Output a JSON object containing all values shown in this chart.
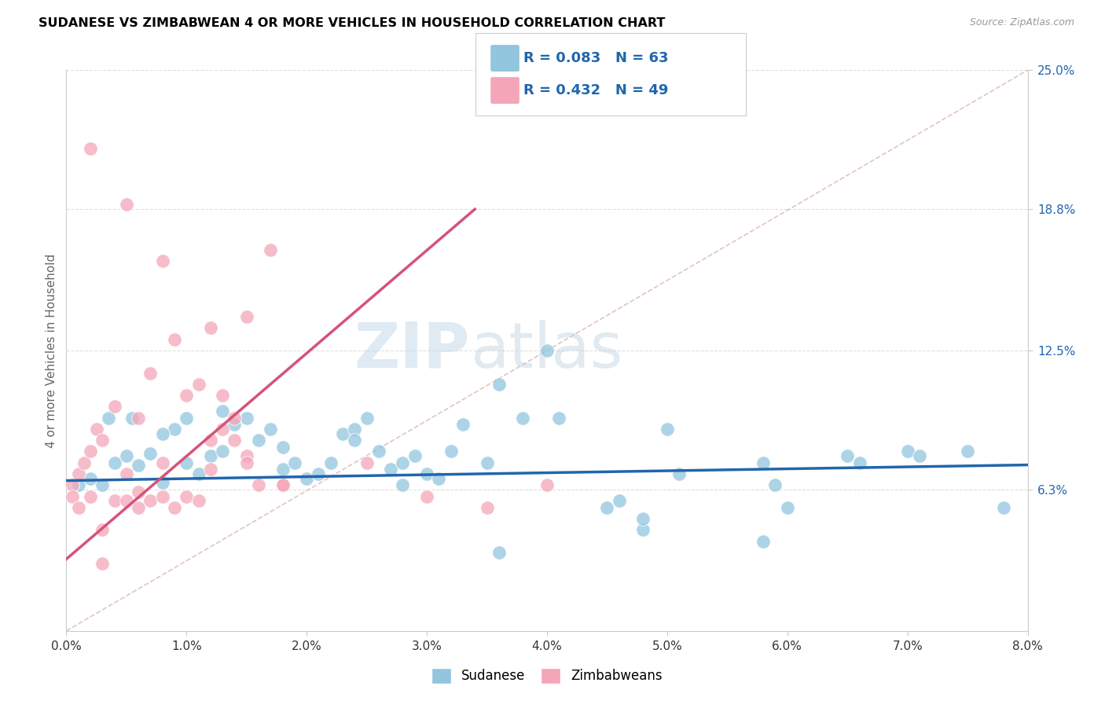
{
  "title": "SUDANESE VS ZIMBABWEAN 4 OR MORE VEHICLES IN HOUSEHOLD CORRELATION CHART",
  "source": "Source: ZipAtlas.com",
  "ylabel": "4 or more Vehicles in Household",
  "watermark_zip": "ZIP",
  "watermark_atlas": "atlas",
  "legend_r_blue": "R = 0.083",
  "legend_n_blue": "N = 63",
  "legend_r_pink": "R = 0.432",
  "legend_n_pink": "N = 49",
  "legend_label_blue": "Sudanese",
  "legend_label_pink": "Zimbabweans",
  "blue_color": "#92c5de",
  "pink_color": "#f4a6b8",
  "blue_line_color": "#2166ac",
  "pink_line_color": "#d6527a",
  "diag_color": "#d4aab0",
  "xlim": [
    0.0,
    0.08
  ],
  "ylim": [
    0.0,
    0.25
  ],
  "x_tick_vals": [
    0.0,
    0.01,
    0.02,
    0.03,
    0.04,
    0.05,
    0.06,
    0.07,
    0.08
  ],
  "x_tick_labels": [
    "0.0%",
    "1.0%",
    "2.0%",
    "3.0%",
    "4.0%",
    "5.0%",
    "6.0%",
    "7.0%",
    "8.0%"
  ],
  "y_tick_vals": [
    0.063,
    0.125,
    0.188,
    0.25
  ],
  "y_tick_labels": [
    "6.3%",
    "12.5%",
    "18.8%",
    "25.0%"
  ],
  "blue_line_x": [
    0.0,
    0.08
  ],
  "blue_line_y": [
    0.067,
    0.074
  ],
  "pink_line_x": [
    0.0,
    0.034
  ],
  "pink_line_y": [
    0.032,
    0.188
  ],
  "diag_line_x": [
    0.0,
    0.08
  ],
  "diag_line_y": [
    0.0,
    0.25
  ],
  "blue_scatter_x": [
    0.001,
    0.002,
    0.003,
    0.004,
    0.005,
    0.006,
    0.007,
    0.008,
    0.009,
    0.01,
    0.011,
    0.012,
    0.013,
    0.014,
    0.015,
    0.016,
    0.017,
    0.018,
    0.019,
    0.02,
    0.021,
    0.022,
    0.023,
    0.024,
    0.025,
    0.026,
    0.027,
    0.028,
    0.029,
    0.03,
    0.031,
    0.032,
    0.033,
    0.035,
    0.036,
    0.038,
    0.04,
    0.041,
    0.045,
    0.046,
    0.048,
    0.05,
    0.051,
    0.058,
    0.059,
    0.06,
    0.065,
    0.066,
    0.07,
    0.071,
    0.075,
    0.078,
    0.0035,
    0.0055,
    0.008,
    0.01,
    0.013,
    0.018,
    0.024,
    0.028,
    0.036,
    0.048,
    0.058
  ],
  "blue_scatter_y": [
    0.065,
    0.068,
    0.065,
    0.075,
    0.078,
    0.074,
    0.079,
    0.066,
    0.09,
    0.075,
    0.07,
    0.078,
    0.08,
    0.092,
    0.095,
    0.085,
    0.09,
    0.072,
    0.075,
    0.068,
    0.07,
    0.075,
    0.088,
    0.09,
    0.095,
    0.08,
    0.072,
    0.065,
    0.078,
    0.07,
    0.068,
    0.08,
    0.092,
    0.075,
    0.11,
    0.095,
    0.125,
    0.095,
    0.055,
    0.058,
    0.045,
    0.09,
    0.07,
    0.075,
    0.065,
    0.055,
    0.078,
    0.075,
    0.08,
    0.078,
    0.08,
    0.055,
    0.095,
    0.095,
    0.088,
    0.095,
    0.098,
    0.082,
    0.085,
    0.075,
    0.035,
    0.05,
    0.04
  ],
  "pink_scatter_x": [
    0.0005,
    0.001,
    0.0015,
    0.002,
    0.0025,
    0.003,
    0.004,
    0.005,
    0.006,
    0.007,
    0.008,
    0.009,
    0.01,
    0.011,
    0.012,
    0.013,
    0.014,
    0.015,
    0.002,
    0.005,
    0.008,
    0.0005,
    0.001,
    0.002,
    0.003,
    0.004,
    0.005,
    0.006,
    0.007,
    0.008,
    0.009,
    0.01,
    0.011,
    0.012,
    0.013,
    0.014,
    0.015,
    0.016,
    0.017,
    0.018,
    0.025,
    0.03,
    0.035,
    0.04,
    0.003,
    0.006,
    0.012,
    0.015,
    0.018
  ],
  "pink_scatter_y": [
    0.065,
    0.07,
    0.075,
    0.08,
    0.09,
    0.085,
    0.1,
    0.07,
    0.095,
    0.115,
    0.075,
    0.13,
    0.105,
    0.11,
    0.135,
    0.105,
    0.095,
    0.14,
    0.215,
    0.19,
    0.165,
    0.06,
    0.055,
    0.06,
    0.03,
    0.058,
    0.058,
    0.062,
    0.058,
    0.06,
    0.055,
    0.06,
    0.058,
    0.072,
    0.09,
    0.085,
    0.078,
    0.065,
    0.17,
    0.065,
    0.075,
    0.06,
    0.055,
    0.065,
    0.045,
    0.055,
    0.085,
    0.075,
    0.065
  ]
}
